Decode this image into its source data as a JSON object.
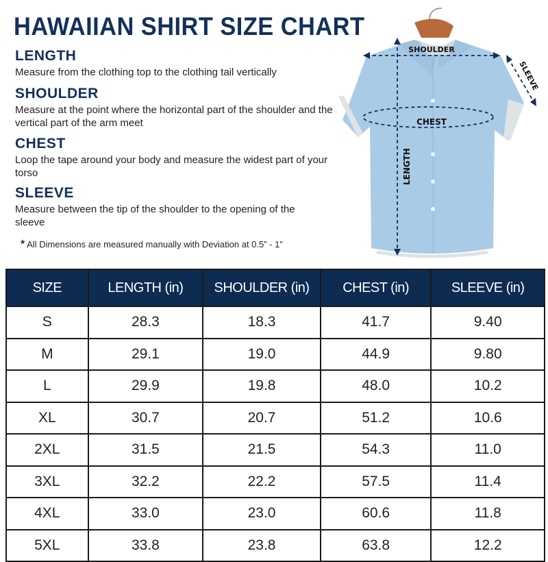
{
  "title": "HAWAIIAN SHIRT SIZE CHART",
  "sections": [
    {
      "heading": "LENGTH",
      "text": "Measure from the clothing top to the clothing tail vertically"
    },
    {
      "heading": "SHOULDER",
      "text": "Measure at the point where the horizontal part of the shoulder and the vertical part of the arm meet"
    },
    {
      "heading": "CHEST",
      "text": "Loop the tape around your body and measure the widest part of your torso"
    },
    {
      "heading": "SLEEVE",
      "text": "Measure between the tip of the shoulder to the opening of the sleeve"
    }
  ],
  "note": {
    "symbol": "*",
    "text": "All Dimensions are measured manually with Deviation at 0.5” - 1”"
  },
  "diagram": {
    "shoulder": "SHOULDER",
    "chest": "CHEST",
    "length": "LENGTH",
    "sleeve": "SLEEVE",
    "shirt_color": "#a9cbe6"
  },
  "colors": {
    "navy": "#0e2b52"
  },
  "table": {
    "headers": [
      "SIZE",
      "LENGTH (in)",
      "SHOULDER (in)",
      "CHEST (in)",
      "SLEEVE (in)"
    ],
    "rows": [
      [
        "S",
        "28.3",
        "18.3",
        "41.7",
        "9.40"
      ],
      [
        "M",
        "29.1",
        "19.0",
        "44.9",
        "9.80"
      ],
      [
        "L",
        "29.9",
        "19.8",
        "48.0",
        "10.2"
      ],
      [
        "XL",
        "30.7",
        "20.7",
        "51.2",
        "10.6"
      ],
      [
        "2XL",
        "31.5",
        "21.5",
        "54.3",
        "11.0"
      ],
      [
        "3XL",
        "32.2",
        "22.2",
        "57.5",
        "11.4"
      ],
      [
        "4XL",
        "33.0",
        "23.0",
        "60.6",
        "11.8"
      ],
      [
        "5XL",
        "33.8",
        "23.8",
        "63.8",
        "12.2"
      ]
    ]
  }
}
